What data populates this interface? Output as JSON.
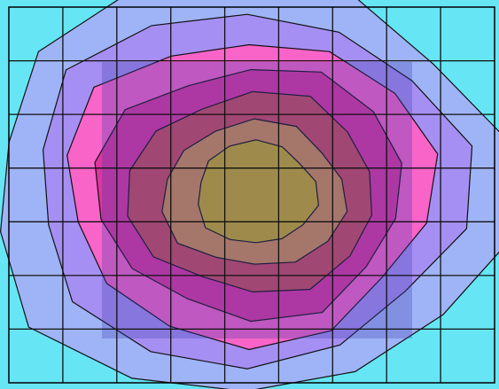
{
  "chart_data": {
    "type": "contour",
    "title": "",
    "xlabel": "",
    "ylabel": "",
    "grid": true,
    "legend": "none",
    "grid_columns": 9,
    "grid_rows": 7,
    "level_colors": [
      "#66e6f4",
      "#9fb4f7",
      "#a68ff3",
      "#f864c8",
      "#df359e",
      "#cd4b5b",
      "#d38f4d",
      "#c9ad20"
    ],
    "overlay_color": "#3c3fae",
    "z": [
      [
        0,
        0,
        1,
        1,
        1,
        1,
        1,
        0,
        0
      ],
      [
        0,
        1,
        2,
        3,
        3,
        3,
        2,
        1,
        0
      ],
      [
        1,
        2,
        3,
        4,
        4,
        4,
        3,
        2,
        1
      ],
      [
        1,
        2,
        4,
        5,
        7,
        6,
        4,
        2,
        1
      ],
      [
        1,
        2,
        3,
        5,
        6,
        5,
        4,
        2,
        1
      ],
      [
        0,
        1,
        2,
        4,
        4,
        4,
        3,
        1,
        0
      ],
      [
        0,
        0,
        1,
        1,
        2,
        1,
        1,
        0,
        0
      ]
    ]
  }
}
